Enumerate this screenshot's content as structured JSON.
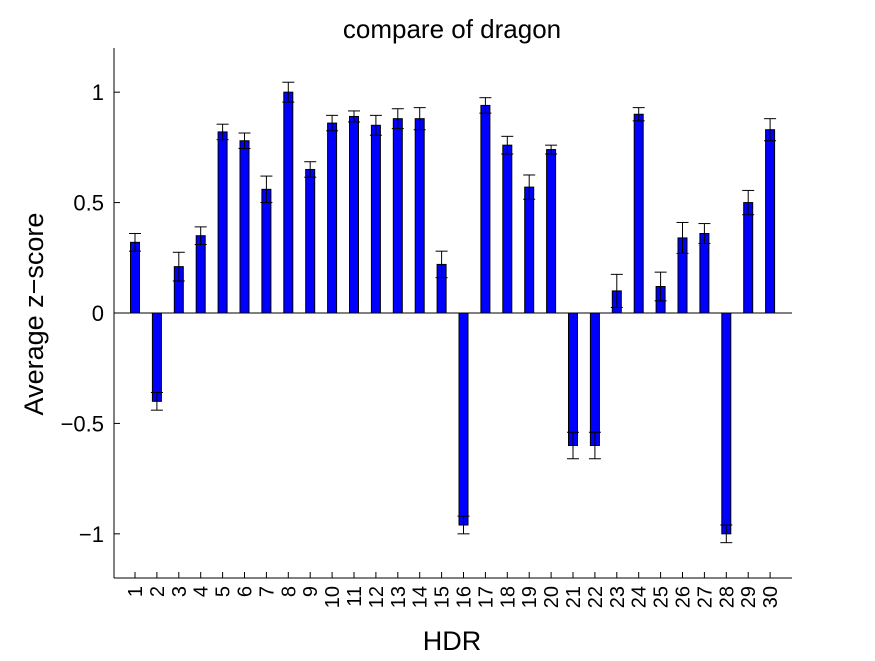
{
  "chart_data": {
    "type": "bar",
    "title": "compare of dragon",
    "xlabel": "HDR",
    "ylabel": "Average z−score",
    "ylim": [
      -1.2,
      1.2
    ],
    "yticks": [
      -1,
      -0.5,
      0,
      0.5,
      1
    ],
    "ytick_labels": [
      "−1",
      "−0.5",
      "0",
      "0.5",
      "1"
    ],
    "categories": [
      "1",
      "2",
      "3",
      "4",
      "5",
      "6",
      "7",
      "8",
      "9",
      "10",
      "11",
      "12",
      "13",
      "14",
      "15",
      "16",
      "17",
      "18",
      "19",
      "20",
      "21",
      "22",
      "23",
      "24",
      "25",
      "26",
      "27",
      "28",
      "29",
      "30"
    ],
    "values": [
      0.32,
      -0.4,
      0.21,
      0.35,
      0.82,
      0.78,
      0.56,
      1.0,
      0.65,
      0.86,
      0.89,
      0.85,
      0.88,
      0.88,
      0.22,
      -0.96,
      0.94,
      0.76,
      0.57,
      0.74,
      -0.6,
      -0.6,
      0.1,
      0.9,
      0.12,
      0.34,
      0.36,
      -1.0,
      0.5,
      0.83
    ],
    "errors": [
      0.04,
      0.04,
      0.065,
      0.04,
      0.035,
      0.035,
      0.06,
      0.045,
      0.035,
      0.035,
      0.025,
      0.045,
      0.045,
      0.05,
      0.06,
      0.04,
      0.035,
      0.04,
      0.055,
      0.02,
      0.06,
      0.06,
      0.075,
      0.03,
      0.065,
      0.07,
      0.045,
      0.04,
      0.055,
      0.05
    ],
    "bar_color": "#0000ff",
    "bar_edge_color": "#000000",
    "grid": false
  }
}
